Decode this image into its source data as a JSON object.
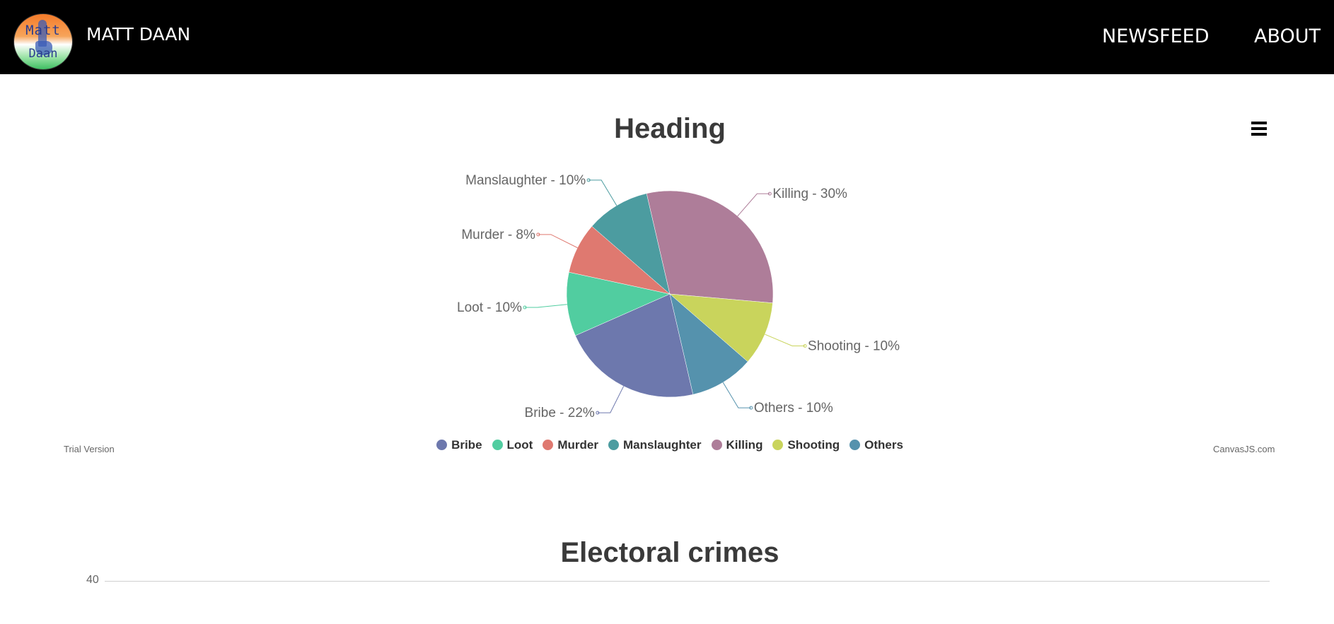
{
  "navbar": {
    "logo": {
      "line1": "Matt",
      "line2": "Daan"
    },
    "brand": "MATT DAAN",
    "links": [
      "NEWSFEED",
      "ABOUT"
    ]
  },
  "pie_chart": {
    "title": "Heading",
    "trial_text": "Trial Version",
    "credit_text": "CanvasJS.com"
  },
  "bar_chart": {
    "title": "Electoral crimes",
    "y_tick_top": "40"
  },
  "chart_data": [
    {
      "type": "pie",
      "title": "Heading",
      "legend_placement": "bottom",
      "categories": [
        "Bribe",
        "Loot",
        "Murder",
        "Manslaughter",
        "Killing",
        "Shooting",
        "Others"
      ],
      "values": [
        22,
        10,
        8,
        10,
        30,
        10,
        10
      ],
      "index_labels": [
        "Bribe - 22%",
        "Loot - 10%",
        "Murder - 8%",
        "Manslaughter - 10%",
        "Killing - 30%",
        "Shooting - 10%",
        "Others - 10%"
      ],
      "colors": [
        "#6d78ad",
        "#51cda0",
        "#df7970",
        "#4c9ca0",
        "#ae7d99",
        "#c9d45c",
        "#5592ad"
      ],
      "start_angle_deg": 77
    },
    {
      "type": "bar",
      "title": "Electoral crimes",
      "y_ticks_visible": [
        "40"
      ],
      "grid": true
    }
  ]
}
